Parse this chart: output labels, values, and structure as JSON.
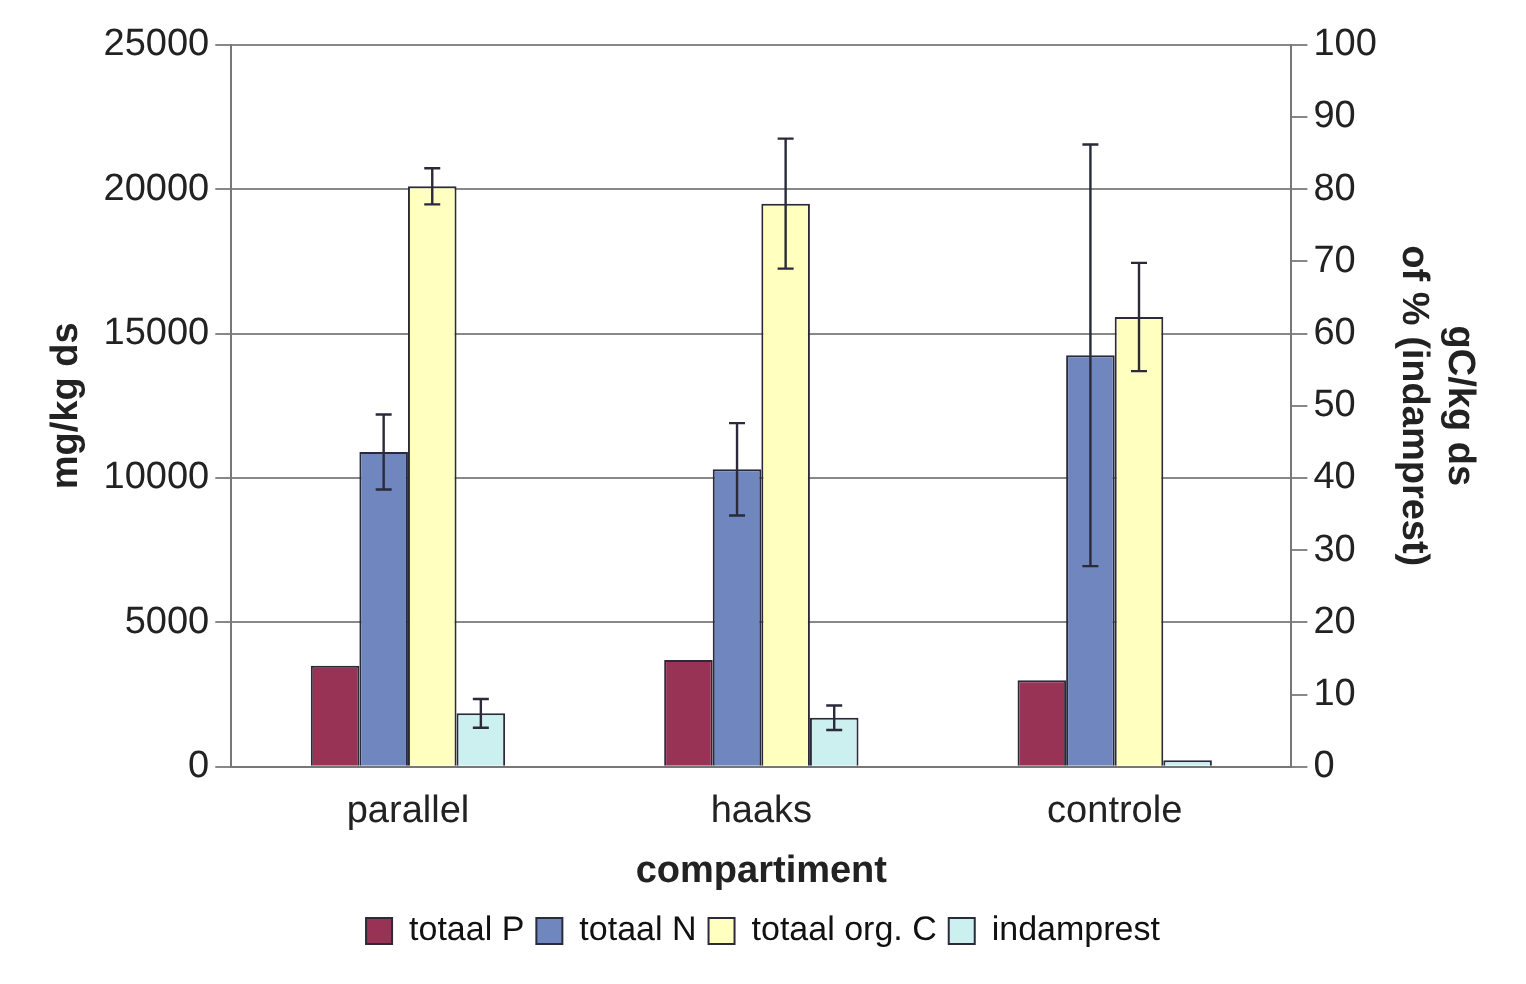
{
  "chart_data": {
    "type": "bar",
    "xlabel": "compartiment",
    "ylabel": "mg/kg ds",
    "y2label": "gC/kg ds\nof % (indamprest)",
    "categories": [
      "parallel",
      "haaks",
      "controle"
    ],
    "series": [
      {
        "name": "totaal P",
        "color": "#993355",
        "values": [
          3500,
          3700,
          3000
        ]
      },
      {
        "name": "totaal N",
        "color": "#6f86bf",
        "values": [
          10900,
          10300,
          14250
        ],
        "errors": [
          1300,
          1600,
          7300
        ]
      },
      {
        "name": "totaal org. C",
        "color": "#ffffc0",
        "axis": "y2",
        "values": [
          80.4,
          78,
          62.3
        ],
        "errors": [
          2.5,
          9,
          7.5
        ]
      },
      {
        "name": "indamprest",
        "color": "#ccf0f0",
        "axis": "y2",
        "values": [
          7.4,
          6.8,
          0.9
        ],
        "errors": [
          2,
          1.7,
          null
        ]
      }
    ],
    "ylim": [
      0,
      25000
    ],
    "yticks": [
      0,
      5000,
      10000,
      15000,
      20000,
      25000
    ],
    "y2lim": [
      0,
      100
    ],
    "y2ticks": [
      0,
      10,
      20,
      30,
      40,
      50,
      60,
      70,
      80,
      90,
      100
    ],
    "grid": "y",
    "legend": "bottom"
  }
}
